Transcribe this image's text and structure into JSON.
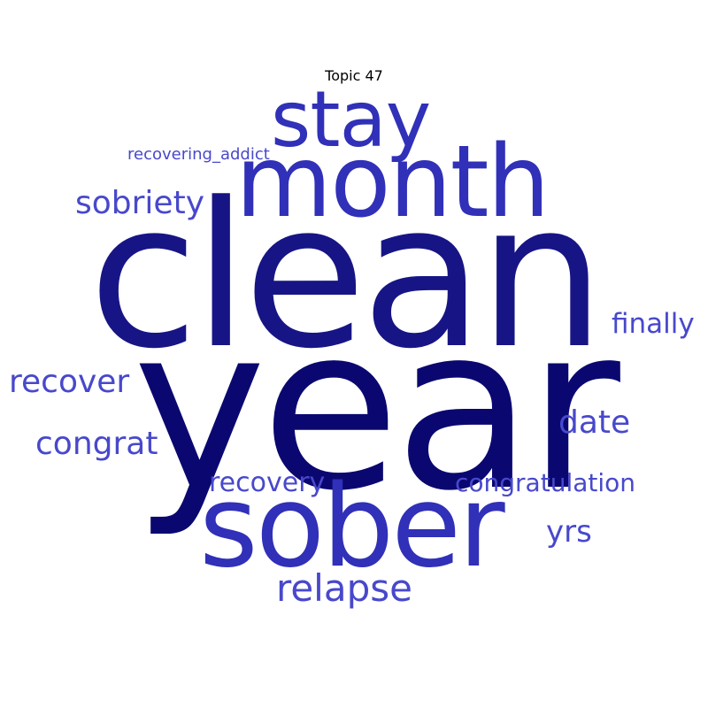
{
  "title": "Topic 47",
  "palette": {
    "darkest": "#0a0870",
    "dark": "#171585",
    "medium": "#3030b8",
    "light": "#4848cc"
  },
  "words": [
    {
      "id": "year",
      "text": "year"
    },
    {
      "id": "clean",
      "text": "clean"
    },
    {
      "id": "sober",
      "text": "sober"
    },
    {
      "id": "month",
      "text": "month"
    },
    {
      "id": "stay",
      "text": "stay"
    },
    {
      "id": "relapse",
      "text": "relapse"
    },
    {
      "id": "sobriety",
      "text": "sobriety"
    },
    {
      "id": "recover",
      "text": "recover"
    },
    {
      "id": "congrat",
      "text": "congrat"
    },
    {
      "id": "date",
      "text": "date"
    },
    {
      "id": "finally",
      "text": "finally"
    },
    {
      "id": "congratulation",
      "text": "congratulation"
    },
    {
      "id": "recovery",
      "text": "recovery"
    },
    {
      "id": "yrs",
      "text": "yrs"
    },
    {
      "id": "recovering_addict",
      "text": "recovering_addict"
    }
  ]
}
